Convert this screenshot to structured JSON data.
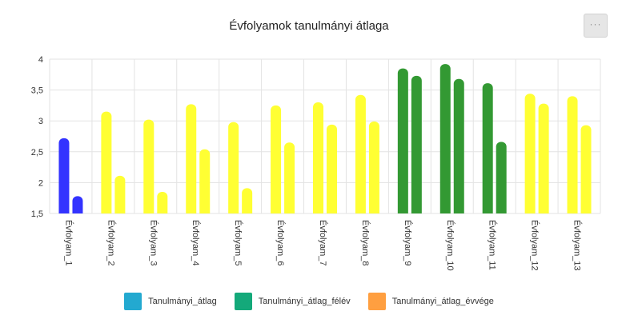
{
  "chart_data": {
    "type": "bar",
    "title": "Évfolyamok tanulmányi átlaga",
    "categories": [
      "Évfolyam_1",
      "Évfolyam_2",
      "Évfolyam_3",
      "Évfolyam_4",
      "Évfolyam_5",
      "Évfolyam_6",
      "Évfolyam_7",
      "Évfolyam_8",
      "Évfolyam_9",
      "Évfolyam_10",
      "Évfolyam_11",
      "Évfolyam_12",
      "Évfolyam_13"
    ],
    "series": [
      {
        "name": "Tanulmányi_átlag_félév",
        "values": [
          2.72,
          3.15,
          3.02,
          3.27,
          2.98,
          3.25,
          3.3,
          3.42,
          3.85,
          3.92,
          3.61,
          3.44,
          3.4
        ]
      },
      {
        "name": "Tanulmányi_átlag_évvége",
        "values": [
          1.78,
          2.11,
          1.85,
          2.54,
          1.91,
          2.65,
          2.94,
          2.99,
          3.73,
          3.68,
          2.66,
          3.28,
          2.93
        ]
      }
    ],
    "bar_colors": [
      "#3333ff",
      "#ffff33",
      "#ffff33",
      "#ffff33",
      "#ffff33",
      "#ffff33",
      "#ffff33",
      "#ffff33",
      "#339933",
      "#339933",
      "#339933",
      "#ffff33",
      "#ffff33"
    ],
    "y_ticks": [
      "1,5",
      "2",
      "2,5",
      "3",
      "3,5",
      "4"
    ],
    "y_tick_values": [
      1.5,
      2,
      2.5,
      3,
      3.5,
      4
    ],
    "ylim": [
      1.5,
      4
    ],
    "grid": true,
    "legend_position": "bottom",
    "legend": [
      {
        "label": "Tanulmányi_átlag",
        "color": "#23a9d0"
      },
      {
        "label": "Tanulmányi_átlag_félév",
        "color": "#14a97a"
      },
      {
        "label": "Tanulmányi_átlag_évvége",
        "color": "#ff9f40"
      }
    ]
  },
  "toolbar": {
    "menu_icon": "ellipsis-icon",
    "menu_label": "···"
  }
}
